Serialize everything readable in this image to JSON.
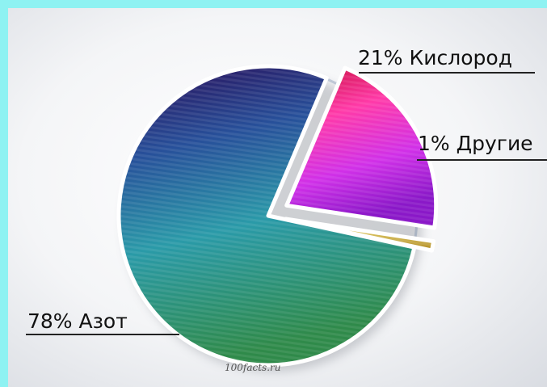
{
  "chart_data": {
    "type": "pie",
    "categories": [
      "Азот",
      "Кислород",
      "Другие"
    ],
    "values": [
      78,
      21,
      1
    ],
    "labels": [
      "78% Азот",
      "21% Кислород",
      "1% Другие"
    ],
    "exploded": [
      "Кислород",
      "Другие"
    ],
    "colors": {
      "Азот": [
        "#2a0a55",
        "#27509a",
        "#2a9aa8",
        "#2f8a4a"
      ],
      "Кислород": [
        "#e0105a",
        "#ff3aa8",
        "#d030e8",
        "#9a20d8"
      ],
      "Другие": [
        "#f2e070",
        "#b08a20"
      ]
    }
  },
  "watermark": "100facts.ru"
}
